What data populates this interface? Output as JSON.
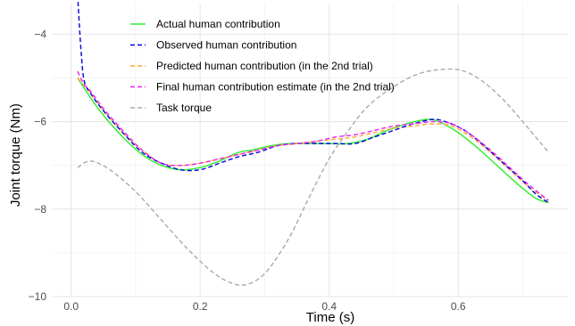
{
  "chart_data": {
    "type": "line",
    "title": "",
    "xlabel": "Time (s)",
    "ylabel": "Joint torque (Nm)",
    "xlim": [
      -0.03,
      0.77
    ],
    "ylim": [
      -10.0,
      -3.3
    ],
    "x_ticks": [
      0.0,
      0.2,
      0.4,
      0.6
    ],
    "x_tick_labels": [
      "0.0",
      "0.2",
      "0.4",
      "0.6"
    ],
    "y_ticks": [
      -10,
      -8,
      -6,
      -4
    ],
    "y_tick_labels": [
      "−10",
      "−8",
      "−6",
      "−4"
    ],
    "grid": true,
    "legend_position": "top-left",
    "series": [
      {
        "name": "Actual human contribution",
        "color": "#33ee33",
        "dash": "solid",
        "x": [
          0.01,
          0.03,
          0.05,
          0.08,
          0.11,
          0.14,
          0.17,
          0.2,
          0.23,
          0.26,
          0.28,
          0.31,
          0.34,
          0.37,
          0.4,
          0.43,
          0.46,
          0.49,
          0.52,
          0.55,
          0.57,
          0.6,
          0.63,
          0.66,
          0.69,
          0.72,
          0.74
        ],
        "y": [
          -5.0,
          -5.45,
          -5.85,
          -6.35,
          -6.75,
          -7.0,
          -7.1,
          -7.05,
          -6.9,
          -6.7,
          -6.65,
          -6.55,
          -6.5,
          -6.5,
          -6.5,
          -6.5,
          -6.4,
          -6.2,
          -6.05,
          -5.95,
          -6.0,
          -6.25,
          -6.6,
          -7.0,
          -7.4,
          -7.75,
          -7.85
        ]
      },
      {
        "name": "Observed  human contribution",
        "color": "#0000dd",
        "dash": "dashed",
        "x": [
          0.01,
          0.015,
          0.02,
          0.03,
          0.05,
          0.08,
          0.11,
          0.14,
          0.17,
          0.2,
          0.23,
          0.26,
          0.29,
          0.32,
          0.35,
          0.38,
          0.41,
          0.44,
          0.47,
          0.5,
          0.53,
          0.56,
          0.58,
          0.61,
          0.64,
          0.67,
          0.7,
          0.72,
          0.74
        ],
        "y": [
          -3.1,
          -4.3,
          -5.05,
          -5.35,
          -5.75,
          -6.25,
          -6.7,
          -6.95,
          -7.1,
          -7.1,
          -6.95,
          -6.8,
          -6.7,
          -6.55,
          -6.5,
          -6.5,
          -6.5,
          -6.5,
          -6.35,
          -6.2,
          -6.05,
          -5.95,
          -6.0,
          -6.2,
          -6.55,
          -6.95,
          -7.35,
          -7.65,
          -7.85
        ]
      },
      {
        "name": "Predicted human contribution (in the 2nd trial)",
        "color": "#ffaa33",
        "dash": "dashed",
        "x": [
          0.01,
          0.03,
          0.05,
          0.08,
          0.11,
          0.14,
          0.17,
          0.2,
          0.23,
          0.26,
          0.29,
          0.32,
          0.35,
          0.38,
          0.41,
          0.44,
          0.47,
          0.5,
          0.53,
          0.56,
          0.59,
          0.62,
          0.65,
          0.68,
          0.71,
          0.74
        ],
        "y": [
          -5.0,
          -5.35,
          -5.75,
          -6.25,
          -6.65,
          -6.95,
          -7.0,
          -6.95,
          -6.85,
          -6.75,
          -6.65,
          -6.55,
          -6.5,
          -6.45,
          -6.4,
          -6.35,
          -6.25,
          -6.15,
          -6.1,
          -6.05,
          -6.1,
          -6.35,
          -6.7,
          -7.1,
          -7.5,
          -7.8
        ]
      },
      {
        "name": "Final human contribution estimate (in the 2nd trial)",
        "color": "#ee22ee",
        "dash": "dashed",
        "x": [
          0.01,
          0.02,
          0.03,
          0.05,
          0.08,
          0.11,
          0.14,
          0.17,
          0.2,
          0.23,
          0.26,
          0.29,
          0.32,
          0.35,
          0.38,
          0.41,
          0.44,
          0.47,
          0.5,
          0.53,
          0.56,
          0.59,
          0.62,
          0.65,
          0.68,
          0.71,
          0.74
        ],
        "y": [
          -4.85,
          -5.15,
          -5.3,
          -5.7,
          -6.2,
          -6.65,
          -6.95,
          -7.0,
          -6.95,
          -6.85,
          -6.75,
          -6.65,
          -6.55,
          -6.5,
          -6.45,
          -6.35,
          -6.3,
          -6.2,
          -6.1,
          -6.05,
          -6.0,
          -6.05,
          -6.3,
          -6.65,
          -7.05,
          -7.45,
          -7.8
        ]
      },
      {
        "name": "Task torque",
        "color": "#aaaaaa",
        "dash": "dashed",
        "x": [
          0.01,
          0.03,
          0.06,
          0.1,
          0.14,
          0.18,
          0.22,
          0.25,
          0.27,
          0.29,
          0.31,
          0.34,
          0.37,
          0.4,
          0.43,
          0.46,
          0.5,
          0.54,
          0.58,
          0.61,
          0.64,
          0.67,
          0.7,
          0.74
        ],
        "y": [
          -7.05,
          -6.9,
          -7.1,
          -7.6,
          -8.25,
          -8.9,
          -9.45,
          -9.7,
          -9.73,
          -9.6,
          -9.3,
          -8.6,
          -7.7,
          -6.85,
          -6.2,
          -5.65,
          -5.2,
          -4.9,
          -4.8,
          -4.85,
          -5.1,
          -5.5,
          -6.0,
          -6.7
        ]
      }
    ]
  }
}
